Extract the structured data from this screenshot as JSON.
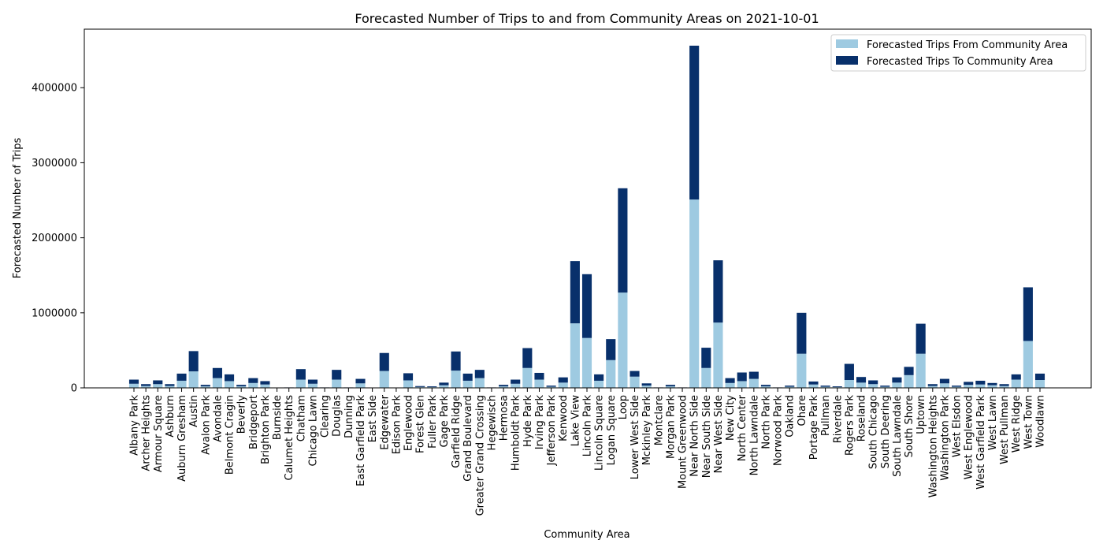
{
  "chart_data": {
    "type": "bar",
    "stacked": true,
    "title": "Forecasted Number of Trips to and from Community Areas on 2021-10-01",
    "xlabel": "Community Area",
    "ylabel": "Forecasted Number of Trips",
    "ylim": [
      0,
      4780000
    ],
    "yticks": [
      0,
      1000000,
      2000000,
      3000000,
      4000000
    ],
    "legend_position": "top-right",
    "grid": false,
    "categories": [
      "Albany Park",
      "Archer Heights",
      "Armour Square",
      "Ashburn",
      "Auburn Gresham",
      "Austin",
      "Avalon Park",
      "Avondale",
      "Belmont Cragin",
      "Beverly",
      "Bridgeport",
      "Brighton Park",
      "Burnside",
      "Calumet Heights",
      "Chatham",
      "Chicago Lawn",
      "Clearing",
      "Douglas",
      "Dunning",
      "East Garfield Park",
      "East Side",
      "Edgewater",
      "Edison Park",
      "Englewood",
      "Forest Glen",
      "Fuller Park",
      "Gage Park",
      "Garfield Ridge",
      "Grand Boulevard",
      "Greater Grand Crossing",
      "Hegewisch",
      "Hermosa",
      "Humboldt Park",
      "Hyde Park",
      "Irving Park",
      "Jefferson Park",
      "Kenwood",
      "Lake View",
      "Lincoln Park",
      "Lincoln Square",
      "Logan Square",
      "Loop",
      "Lower West Side",
      "Mckinley Park",
      "Montclare",
      "Morgan Park",
      "Mount Greenwood",
      "Near North Side",
      "Near South Side",
      "Near West Side",
      "New City",
      "North Center",
      "North Lawndale",
      "North Park",
      "Norwood Park",
      "Oakland",
      "Ohare",
      "Portage Park",
      "Pullman",
      "Riverdale",
      "Rogers Park",
      "Roseland",
      "South Chicago",
      "South Deering",
      "South Lawndale",
      "South Shore",
      "Uptown",
      "Washington Heights",
      "Washington Park",
      "West Elsdon",
      "West Englewood",
      "West Garfield Park",
      "West Lawn",
      "West Pullman",
      "West Ridge",
      "West Town",
      "Woodlawn"
    ],
    "series": [
      {
        "name": "Forecasted Trips From Community Area",
        "color": "#9ecae1",
        "values": [
          55000,
          25000,
          50000,
          25000,
          95000,
          220000,
          20000,
          130000,
          90000,
          20000,
          65000,
          45000,
          2000,
          3000,
          110000,
          55000,
          3000,
          110000,
          3000,
          60000,
          2000,
          225000,
          2000,
          100000,
          12000,
          10000,
          35000,
          230000,
          95000,
          130000,
          3000,
          20000,
          55000,
          265000,
          110000,
          15000,
          70000,
          860000,
          665000,
          95000,
          370000,
          1270000,
          150000,
          30000,
          3000,
          20000,
          3000,
          2510000,
          265000,
          870000,
          65000,
          90000,
          120000,
          20000,
          3000,
          15000,
          455000,
          45000,
          15000,
          10000,
          105000,
          70000,
          50000,
          15000,
          70000,
          170000,
          455000,
          25000,
          60000,
          15000,
          40000,
          45000,
          35000,
          25000,
          110000,
          625000,
          105000
        ]
      },
      {
        "name": "Forecasted Trips To Community Area",
        "color": "#08306b",
        "values": [
          55000,
          25000,
          50000,
          25000,
          95000,
          270000,
          20000,
          135000,
          90000,
          20000,
          65000,
          45000,
          2000,
          3000,
          140000,
          55000,
          3000,
          130000,
          3000,
          60000,
          2000,
          240000,
          2000,
          95000,
          12000,
          10000,
          35000,
          255000,
          95000,
          110000,
          3000,
          20000,
          55000,
          265000,
          90000,
          15000,
          70000,
          830000,
          850000,
          85000,
          280000,
          1390000,
          75000,
          30000,
          3000,
          20000,
          3000,
          2050000,
          270000,
          830000,
          65000,
          115000,
          95000,
          20000,
          3000,
          15000,
          545000,
          40000,
          15000,
          10000,
          215000,
          75000,
          50000,
          15000,
          70000,
          110000,
          400000,
          25000,
          60000,
          15000,
          40000,
          50000,
          30000,
          25000,
          70000,
          715000,
          85000
        ]
      }
    ]
  }
}
